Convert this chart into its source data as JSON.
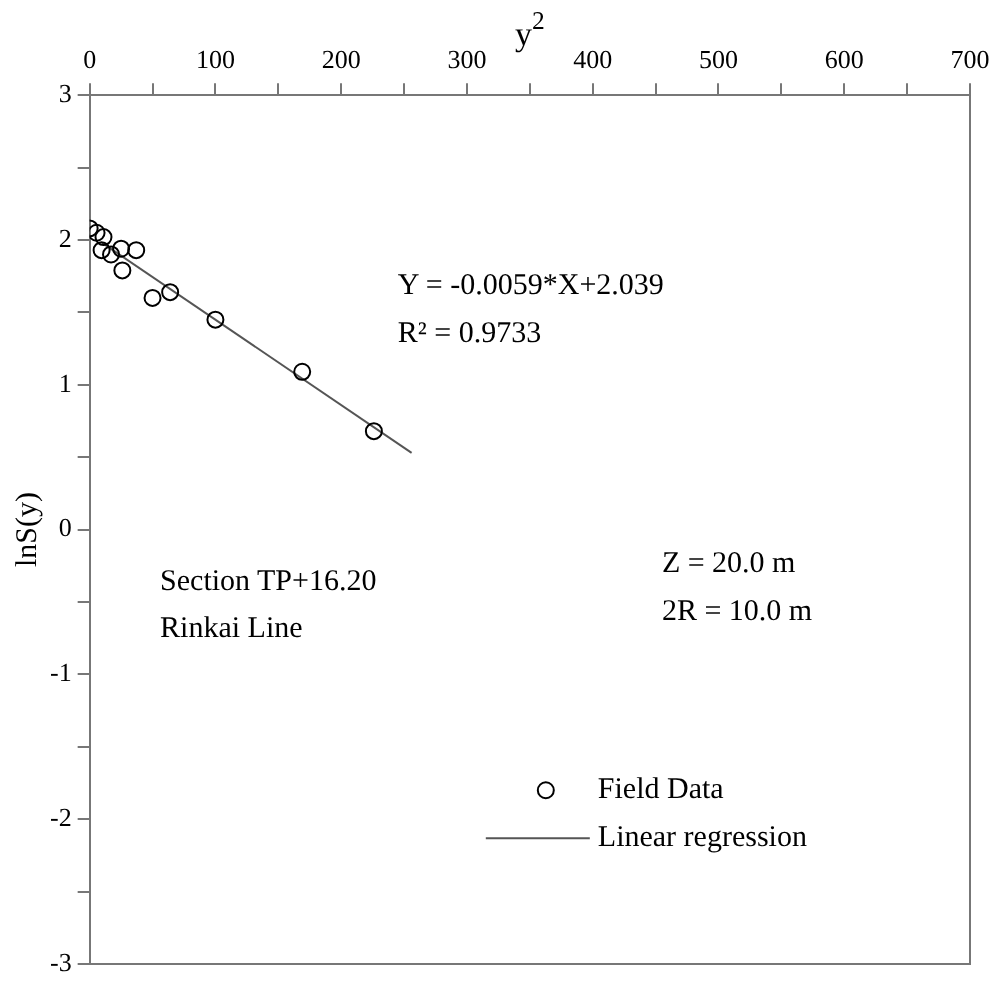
{
  "chart_data": {
    "type": "scatter",
    "xlabel": "y$^{2}$",
    "ylabel": "lnS(y)",
    "xlim": [
      0,
      700
    ],
    "xticks": [
      0,
      {
        "value": 50,
        "label": null
      },
      100,
      {
        "value": 150,
        "label": null
      },
      200,
      {
        "value": 250,
        "label": null
      },
      300,
      {
        "value": 350,
        "label": null
      },
      400,
      {
        "value": 450,
        "label": null
      },
      500,
      {
        "value": 550,
        "label": null
      },
      600,
      {
        "value": 650,
        "label": null
      },
      700
    ],
    "ylim": [
      -3,
      3
    ],
    "yticks": [
      -3,
      {
        "value": -2.5,
        "label": null
      },
      -2,
      {
        "value": -1.5,
        "label": null
      },
      -1,
      {
        "value": -0.5,
        "label": null
      },
      0,
      {
        "value": 0.5,
        "label": null
      },
      1,
      {
        "value": 1.5,
        "label": null
      },
      2,
      {
        "value": 2.5,
        "label": null
      },
      3
    ],
    "legend": "bottom right",
    "annotations": [
      "Y = -0.0059*X+2.039",
      "R² = 0.9733",
      "Section TP+16.20",
      "Rinkai Line",
      "Z = 20.0 m",
      "2R = 10.0 m"
    ],
    "series": [
      {
        "name": "Field Data",
        "type": "scatter",
        "marker": "circle",
        "color": "#000000",
        "x": [
          0,
          5.5,
          11,
          9.5,
          17,
          26,
          25,
          37,
          50,
          64,
          100,
          169,
          226
        ],
        "values": [
          2.08,
          2.05,
          2.02,
          1.93,
          1.9,
          1.79,
          1.94,
          1.93,
          1.6,
          1.64,
          1.45,
          1.09,
          0.68
        ]
      },
      {
        "name": "Linear regression",
        "type": "line",
        "marker": "none",
        "color": "#555555",
        "x": [
          10,
          256
        ],
        "values": [
          1.98,
          0.53
        ]
      }
    ]
  }
}
